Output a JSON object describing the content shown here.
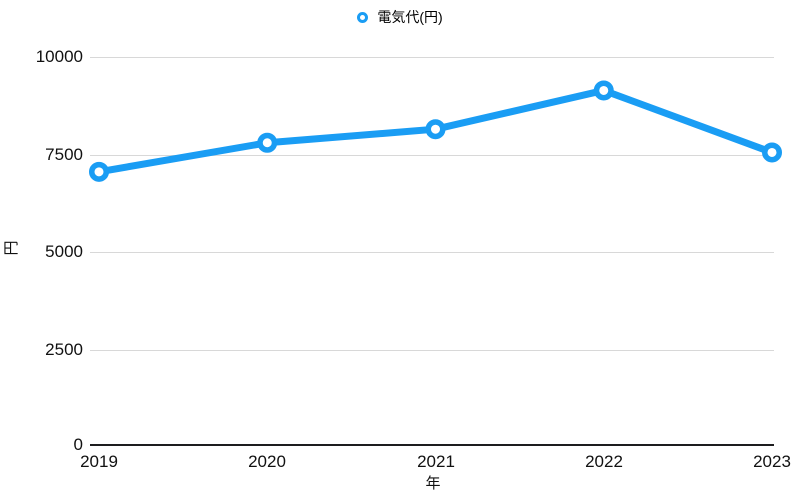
{
  "legend": {
    "label": "電気代(円)"
  },
  "colors": {
    "line": "#1A9DF4",
    "grid": "#D8D8D8",
    "axis": "#1D1D1F",
    "text": "#111111"
  },
  "chart_data": {
    "type": "line",
    "title": "",
    "xlabel": "年",
    "ylabel": "円",
    "x": [
      "2019",
      "2020",
      "2021",
      "2022",
      "2023"
    ],
    "series": [
      {
        "name": "電気代(円)",
        "values": [
          7050,
          7800,
          8150,
          9150,
          7550
        ]
      }
    ],
    "ylim": [
      0,
      10000
    ],
    "yticks": [
      0,
      2500,
      5000,
      7500,
      10000
    ],
    "grid": true,
    "legend_position": "top-center",
    "marker": "open-circle"
  }
}
